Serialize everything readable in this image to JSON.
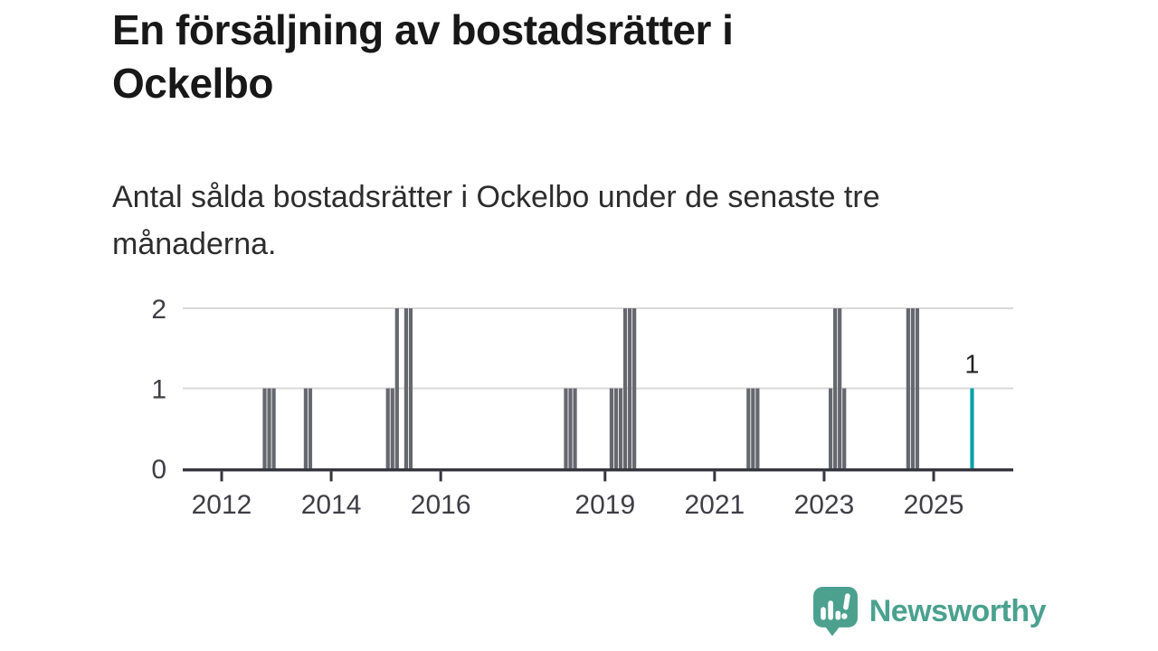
{
  "header": {
    "title": "En försäljning av bostadsrätter i Ockelbo",
    "title_line1": "En försäljning av bostadsrätter i",
    "title_line2": "Ockelbo",
    "subtitle": "Antal sålda bostadsrätter i Ockelbo under de senaste tre månaderna.",
    "subtitle_line1": "Antal sålda bostadsrätter i Ockelbo under de senaste tre",
    "subtitle_line2": "månaderna."
  },
  "chart_data": {
    "type": "bar",
    "title": "En försäljning av bostadsrätter i Ockelbo",
    "subtitle": "Antal sålda bostadsrätter i Ockelbo under de senaste tre månaderna.",
    "x_ticks": [
      2012,
      2014,
      2016,
      2019,
      2021,
      2023,
      2025
    ],
    "y_ticks": [
      0,
      1,
      2
    ],
    "ylim": [
      0,
      2
    ],
    "grid": "horizontal-lines-at-1-and-2",
    "legend": "none",
    "bars": [
      {
        "month": "2012-10",
        "value": 1
      },
      {
        "month": "2012-11",
        "value": 1
      },
      {
        "month": "2012-12",
        "value": 1
      },
      {
        "month": "2013-07",
        "value": 1
      },
      {
        "month": "2013-08",
        "value": 1
      },
      {
        "month": "2015-01",
        "value": 1
      },
      {
        "month": "2015-02",
        "value": 1
      },
      {
        "month": "2015-03",
        "value": 2
      },
      {
        "month": "2015-05",
        "value": 2
      },
      {
        "month": "2015-06",
        "value": 2
      },
      {
        "month": "2018-04",
        "value": 1
      },
      {
        "month": "2018-05",
        "value": 1
      },
      {
        "month": "2018-06",
        "value": 1
      },
      {
        "month": "2019-02",
        "value": 1
      },
      {
        "month": "2019-03",
        "value": 1
      },
      {
        "month": "2019-04",
        "value": 1
      },
      {
        "month": "2019-05",
        "value": 2
      },
      {
        "month": "2019-06",
        "value": 2
      },
      {
        "month": "2019-07",
        "value": 2
      },
      {
        "month": "2021-08",
        "value": 1
      },
      {
        "month": "2021-09",
        "value": 1
      },
      {
        "month": "2021-10",
        "value": 1
      },
      {
        "month": "2023-02",
        "value": 1
      },
      {
        "month": "2023-03",
        "value": 2
      },
      {
        "month": "2023-04",
        "value": 2
      },
      {
        "month": "2023-05",
        "value": 1
      },
      {
        "month": "2024-07",
        "value": 2
      },
      {
        "month": "2024-08",
        "value": 2
      },
      {
        "month": "2024-09",
        "value": 2
      },
      {
        "month": "2025-09",
        "value": 1,
        "highlight": true
      }
    ],
    "annotation": {
      "month": "2025-09",
      "label": "1"
    },
    "colors": {
      "bar": "#67676f",
      "highlight": "#0ba3a6",
      "gridline": "#d9d9d9",
      "axis": "#36363e",
      "tick_label": "#3e3e45",
      "annotation": "#222222"
    }
  },
  "footer": {
    "brand": "Newsworthy",
    "brand_color": "#4ba18e",
    "icon": "newsworthy-speech-bubble-chart-icon"
  }
}
